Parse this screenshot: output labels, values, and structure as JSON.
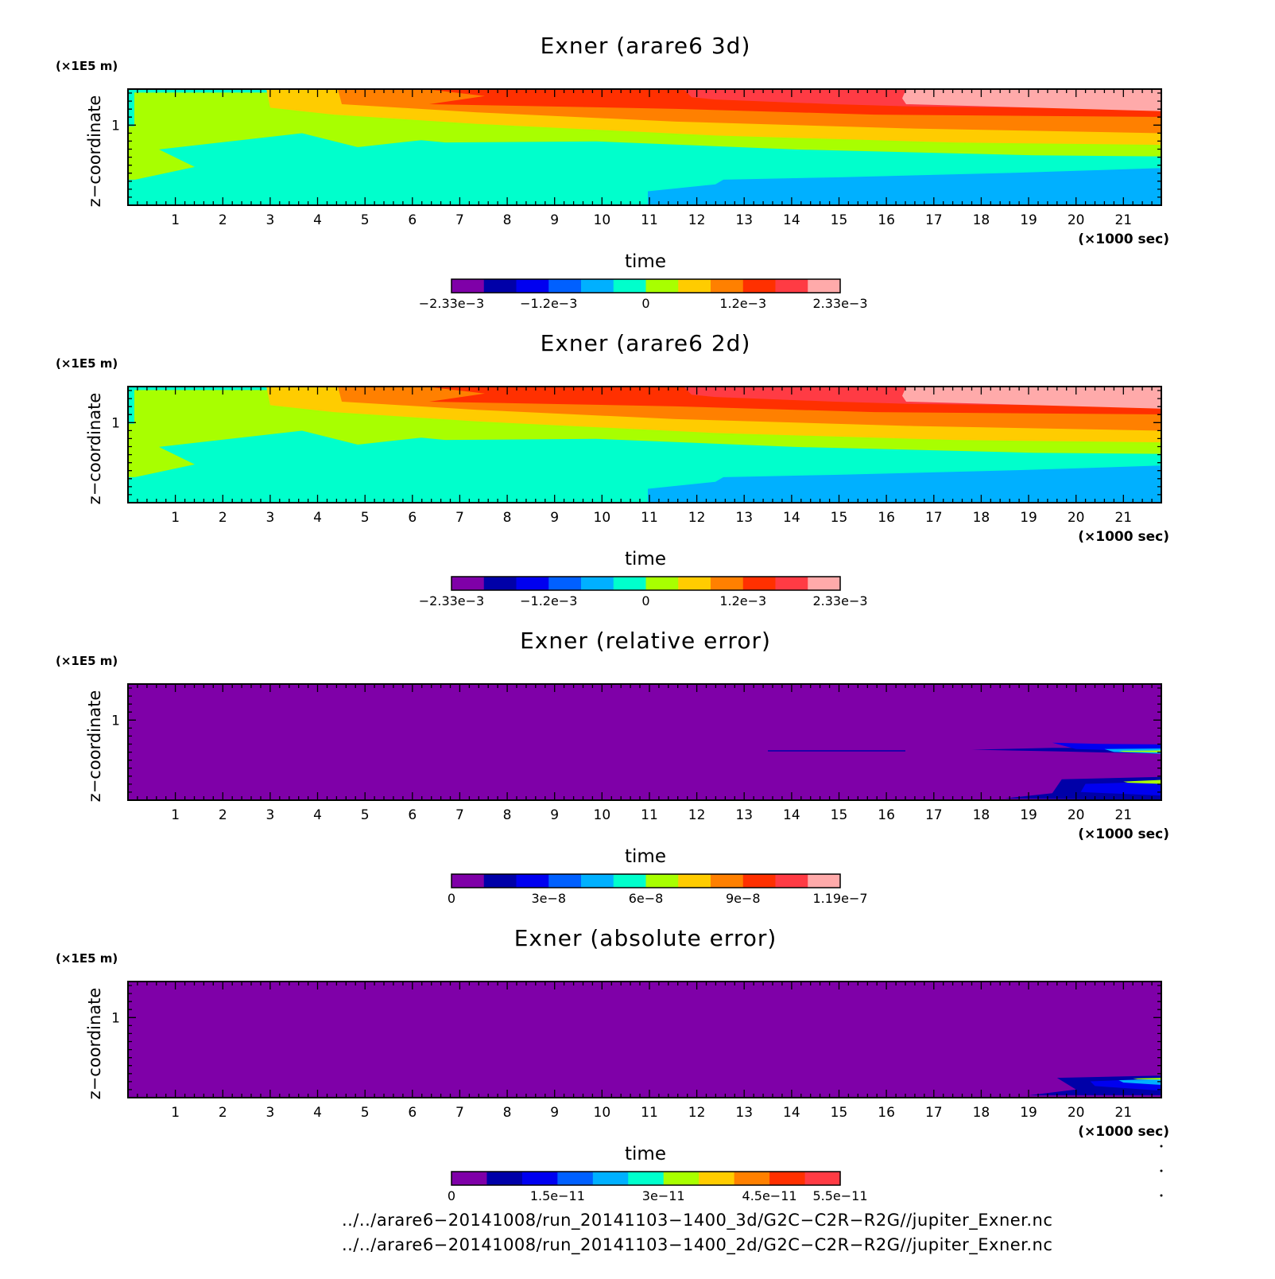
{
  "chart_data": [
    {
      "type": "heatmap",
      "title": "Exner (arare6 3d)",
      "xlabel": "time",
      "x_unit": "(×1000 sec)",
      "ylabel": "z−coordinate",
      "y_unit": "(×1E5 m)",
      "x_ticks": [
        "1",
        "2",
        "3",
        "4",
        "5",
        "6",
        "7",
        "8",
        "9",
        "10",
        "11",
        "12",
        "13",
        "14",
        "15",
        "16",
        "17",
        "18",
        "19",
        "20",
        "21"
      ],
      "y_ticks": [
        "1"
      ],
      "colorbar": {
        "labels": [
          "−2.33e−3",
          "−1.2e−3",
          "0",
          "1.2e−3",
          "2.33e−3"
        ],
        "min": -0.00233,
        "max": 0.00233,
        "colors": [
          "#7f00a8",
          "#0000a8",
          "#0000f0",
          "#0060ff",
          "#00b0ff",
          "#00ffcc",
          "#a8ff00",
          "#ffcc00",
          "#ff8000",
          "#ff3000",
          "#ff3b44",
          "#ffaaaa"
        ]
      },
      "pattern": "field"
    },
    {
      "type": "heatmap",
      "title": "Exner (arare6 2d)",
      "xlabel": "time",
      "x_unit": "(×1000 sec)",
      "ylabel": "z−coordinate",
      "y_unit": "(×1E5 m)",
      "x_ticks": [
        "1",
        "2",
        "3",
        "4",
        "5",
        "6",
        "7",
        "8",
        "9",
        "10",
        "11",
        "12",
        "13",
        "14",
        "15",
        "16",
        "17",
        "18",
        "19",
        "20",
        "21"
      ],
      "y_ticks": [
        "1"
      ],
      "colorbar": {
        "labels": [
          "−2.33e−3",
          "−1.2e−3",
          "0",
          "1.2e−3",
          "2.33e−3"
        ],
        "min": -0.00233,
        "max": 0.00233,
        "colors": [
          "#7f00a8",
          "#0000a8",
          "#0000f0",
          "#0060ff",
          "#00b0ff",
          "#00ffcc",
          "#a8ff00",
          "#ffcc00",
          "#ff8000",
          "#ff3000",
          "#ff3b44",
          "#ffaaaa"
        ]
      },
      "pattern": "field"
    },
    {
      "type": "heatmap",
      "title": "Exner (relative error)",
      "xlabel": "time",
      "x_unit": "(×1000 sec)",
      "ylabel": "z−coordinate",
      "y_unit": "(×1E5 m)",
      "x_ticks": [
        "1",
        "2",
        "3",
        "4",
        "5",
        "6",
        "7",
        "8",
        "9",
        "10",
        "11",
        "12",
        "13",
        "14",
        "15",
        "16",
        "17",
        "18",
        "19",
        "20",
        "21"
      ],
      "y_ticks": [
        "1"
      ],
      "colorbar": {
        "labels": [
          "0",
          "3e−8",
          "6e−8",
          "9e−8",
          "1.19e−7"
        ],
        "min": 0,
        "max": 1.19e-07,
        "colors": [
          "#7f00a8",
          "#0000a8",
          "#0000f0",
          "#0060ff",
          "#00b0ff",
          "#00ffcc",
          "#a8ff00",
          "#ffcc00",
          "#ff8000",
          "#ff3000",
          "#ff3b44",
          "#ffaaaa"
        ]
      },
      "pattern": "relerr"
    },
    {
      "type": "heatmap",
      "title": "Exner (absolute error)",
      "xlabel": "time",
      "x_unit": "(×1000 sec)",
      "ylabel": "z−coordinate",
      "y_unit": "(×1E5 m)",
      "x_ticks": [
        "1",
        "2",
        "3",
        "4",
        "5",
        "6",
        "7",
        "8",
        "9",
        "10",
        "11",
        "12",
        "13",
        "14",
        "15",
        "16",
        "17",
        "18",
        "19",
        "20",
        "21"
      ],
      "y_ticks": [
        "1"
      ],
      "colorbar": {
        "labels": [
          "0",
          "1.5e−11",
          "3e−11",
          "4.5e−11",
          "5.5e−11"
        ],
        "min": 0,
        "max": 5.5e-11,
        "colors": [
          "#7f00a8",
          "#0000a8",
          "#0000f0",
          "#0060ff",
          "#00b0ff",
          "#00ffcc",
          "#a8ff00",
          "#ffcc00",
          "#ff8000",
          "#ff3000",
          "#ff3b44"
        ]
      },
      "pattern": "abserr"
    }
  ],
  "footer": {
    "line1": "../../arare6−20141008/run_20141103−1400_3d/G2C−C2R−R2G//jupiter_Exner.nc",
    "line2": "../../arare6−20141008/run_20141103−1400_2d/G2C−C2R−R2G//jupiter_Exner.nc"
  }
}
